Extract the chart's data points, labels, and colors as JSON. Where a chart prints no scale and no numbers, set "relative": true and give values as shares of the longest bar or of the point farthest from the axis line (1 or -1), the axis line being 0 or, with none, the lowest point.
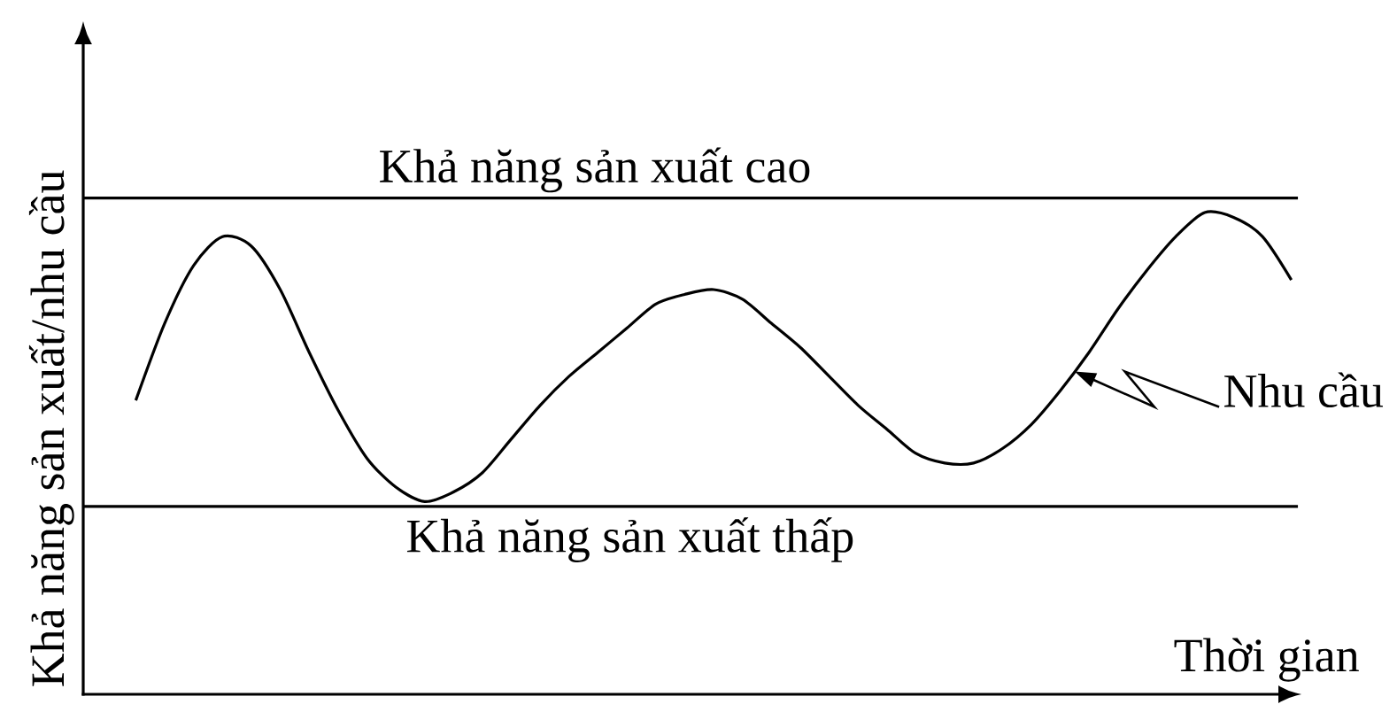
{
  "chart_data": {
    "type": "line",
    "xlabel": "Thời gian",
    "ylabel": "Khả năng sản xuất/nhu cầu",
    "relative": true,
    "categories": [
      null,
      null,
      null,
      null,
      null,
      null,
      null,
      null,
      null,
      null,
      null,
      null,
      null,
      null,
      null,
      null,
      null,
      null,
      null,
      null,
      null,
      null,
      null,
      null,
      null,
      null,
      null,
      null,
      null,
      null,
      null,
      null,
      null,
      null,
      null,
      null,
      null,
      null,
      null,
      null,
      null
    ],
    "series": [
      {
        "name": "Nhu cầu",
        "color": "#000000",
        "values": [
          0.61,
          0.77,
          0.89,
          0.95,
          0.93,
          0.84,
          0.71,
          0.59,
          0.49,
          0.43,
          0.4,
          0.42,
          0.46,
          0.53,
          0.6,
          0.66,
          0.71,
          0.76,
          0.81,
          0.83,
          0.84,
          0.82,
          0.77,
          0.72,
          0.66,
          0.6,
          0.55,
          0.5,
          0.48,
          0.48,
          0.51,
          0.56,
          0.63,
          0.71,
          0.8,
          0.88,
          0.95,
          1.0,
          0.99,
          0.95,
          0.86
        ]
      }
    ],
    "ref_lines": [
      {
        "axis": "y",
        "value": 1.03,
        "label": "Khả năng sản xuất cao",
        "color": "#000000"
      },
      {
        "axis": "y",
        "value": 0.39,
        "label": "Khả năng sản xuất thấp",
        "color": "#000000"
      }
    ],
    "marker": "none",
    "line_style": "solid"
  }
}
